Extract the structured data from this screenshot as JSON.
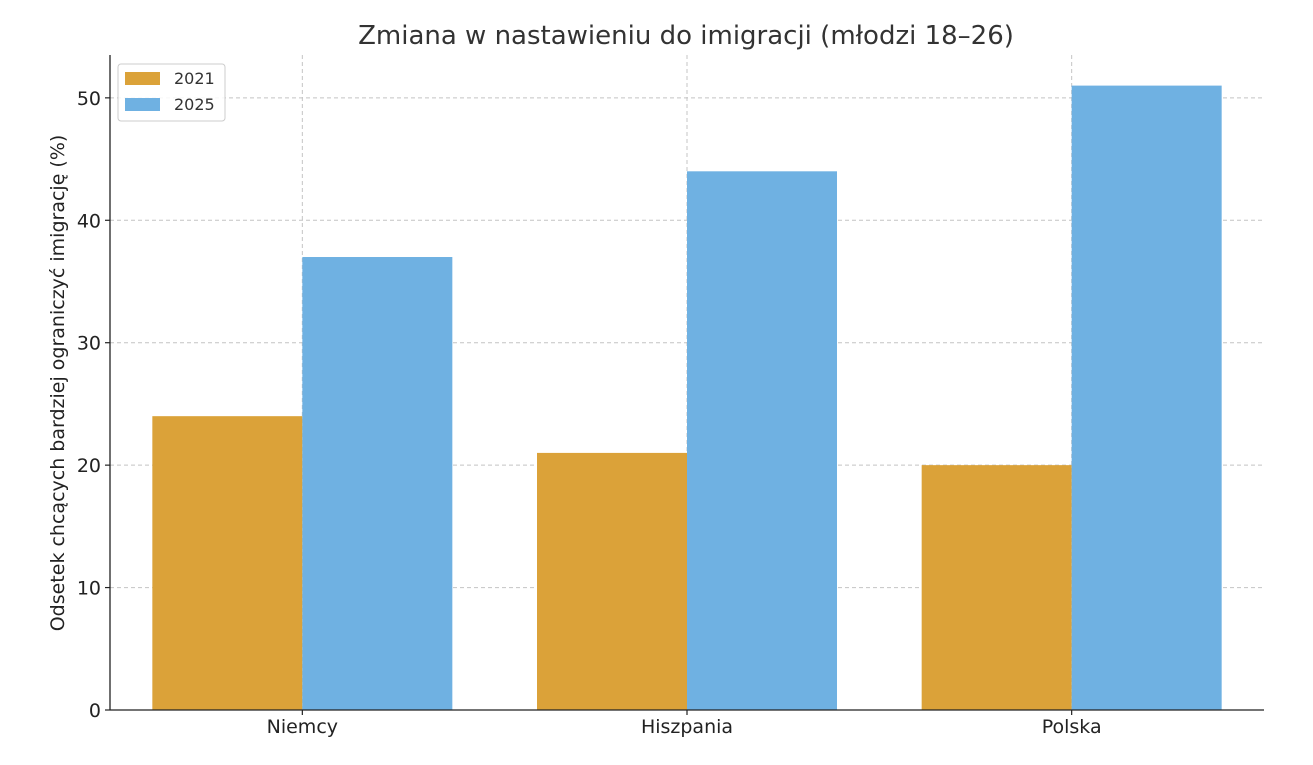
{
  "chart_data": {
    "type": "bar",
    "title": "Zmiana w nastawieniu do imigracji (młodzi 18–26)",
    "xlabel": "",
    "ylabel": "Odsetek chcących bardziej ograniczyć imigrację (%)",
    "categories": [
      "Niemcy",
      "Hiszpania",
      "Polska"
    ],
    "series": [
      {
        "name": "2021",
        "values": [
          24,
          21,
          20
        ],
        "color": "#DBA239"
      },
      {
        "name": "2025",
        "values": [
          37,
          44,
          51
        ],
        "color": "#6FB1E2"
      }
    ],
    "ylim": [
      0,
      53.5
    ],
    "yticks": [
      0,
      10,
      20,
      30,
      40,
      50
    ],
    "grid": true,
    "legend_position": "top-left"
  }
}
